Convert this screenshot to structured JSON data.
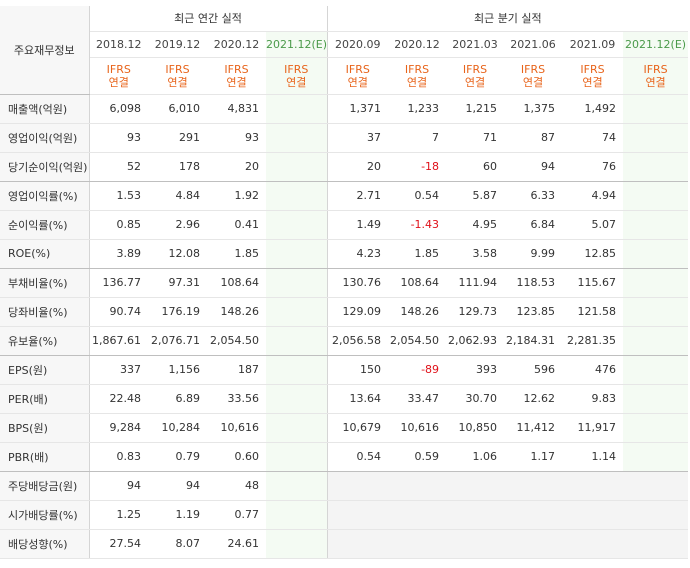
{
  "header": {
    "label_header": "주요재무정보",
    "annual_title": "최근 연간 실적",
    "quarter_title": "최근 분기 실적",
    "annual_periods": [
      "2018.12",
      "2019.12",
      "2020.12",
      "2021.12(E)"
    ],
    "quarter_periods": [
      "2020.09",
      "2020.12",
      "2021.03",
      "2021.06",
      "2021.09",
      "2021.12(E)"
    ],
    "ifrs_line1": "IFRS",
    "ifrs_line2": "연결"
  },
  "rows": [
    {
      "label": "매출액(억원)",
      "annual": [
        "6,098",
        "6,010",
        "4,831",
        ""
      ],
      "quarter": [
        "1,371",
        "1,233",
        "1,215",
        "1,375",
        "1,492",
        ""
      ]
    },
    {
      "label": "영업이익(억원)",
      "annual": [
        "93",
        "291",
        "93",
        ""
      ],
      "quarter": [
        "37",
        "7",
        "71",
        "87",
        "74",
        ""
      ]
    },
    {
      "label": "당기순이익(억원)",
      "annual": [
        "52",
        "178",
        "20",
        ""
      ],
      "quarter": [
        "20",
        "-18",
        "60",
        "94",
        "76",
        ""
      ]
    },
    {
      "label": "영업이익률(%)",
      "annual": [
        "1.53",
        "4.84",
        "1.92",
        ""
      ],
      "quarter": [
        "2.71",
        "0.54",
        "5.87",
        "6.33",
        "4.94",
        ""
      ]
    },
    {
      "label": "순이익률(%)",
      "annual": [
        "0.85",
        "2.96",
        "0.41",
        ""
      ],
      "quarter": [
        "1.49",
        "-1.43",
        "4.95",
        "6.84",
        "5.07",
        ""
      ]
    },
    {
      "label": "ROE(%)",
      "annual": [
        "3.89",
        "12.08",
        "1.85",
        ""
      ],
      "quarter": [
        "4.23",
        "1.85",
        "3.58",
        "9.99",
        "12.85",
        ""
      ]
    },
    {
      "label": "부채비율(%)",
      "annual": [
        "136.77",
        "97.31",
        "108.64",
        ""
      ],
      "quarter": [
        "130.76",
        "108.64",
        "111.94",
        "118.53",
        "115.67",
        ""
      ]
    },
    {
      "label": "당좌비율(%)",
      "annual": [
        "90.74",
        "176.19",
        "148.26",
        ""
      ],
      "quarter": [
        "129.09",
        "148.26",
        "129.73",
        "123.85",
        "121.58",
        ""
      ]
    },
    {
      "label": "유보율(%)",
      "annual": [
        "1,867.61",
        "2,076.71",
        "2,054.50",
        ""
      ],
      "quarter": [
        "2,056.58",
        "2,054.50",
        "2,062.93",
        "2,184.31",
        "2,281.35",
        ""
      ]
    },
    {
      "label": "EPS(원)",
      "annual": [
        "337",
        "1,156",
        "187",
        ""
      ],
      "quarter": [
        "150",
        "-89",
        "393",
        "596",
        "476",
        ""
      ]
    },
    {
      "label": "PER(배)",
      "annual": [
        "22.48",
        "6.89",
        "33.56",
        ""
      ],
      "quarter": [
        "13.64",
        "33.47",
        "30.70",
        "12.62",
        "9.83",
        ""
      ]
    },
    {
      "label": "BPS(원)",
      "annual": [
        "9,284",
        "10,284",
        "10,616",
        ""
      ],
      "quarter": [
        "10,679",
        "10,616",
        "10,850",
        "11,412",
        "11,917",
        ""
      ]
    },
    {
      "label": "PBR(배)",
      "annual": [
        "0.83",
        "0.79",
        "0.60",
        ""
      ],
      "quarter": [
        "0.54",
        "0.59",
        "1.06",
        "1.17",
        "1.14",
        ""
      ]
    },
    {
      "label": "주당배당금(원)",
      "annual": [
        "94",
        "94",
        "48",
        ""
      ],
      "quarter": [
        "",
        "",
        "",
        "",
        "",
        ""
      ]
    },
    {
      "label": "시가배당률(%)",
      "annual": [
        "1.25",
        "1.19",
        "0.77",
        ""
      ],
      "quarter": [
        "",
        "",
        "",
        "",
        "",
        ""
      ]
    },
    {
      "label": "배당성향(%)",
      "annual": [
        "27.54",
        "8.07",
        "24.61",
        ""
      ],
      "quarter": [
        "",
        "",
        "",
        "",
        "",
        ""
      ]
    }
  ]
}
